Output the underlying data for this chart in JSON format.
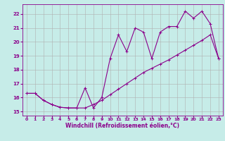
{
  "xlabel": "Windchill (Refroidissement éolien,°C)",
  "bg_color": "#c6ece8",
  "line_color": "#8b008b",
  "grid_color": "#b0b0b0",
  "xlim": [
    -0.5,
    23.5
  ],
  "ylim": [
    14.7,
    22.7
  ],
  "yticks": [
    15,
    16,
    17,
    18,
    19,
    20,
    21,
    22
  ],
  "xticks": [
    0,
    1,
    2,
    3,
    4,
    5,
    6,
    7,
    8,
    9,
    10,
    11,
    12,
    13,
    14,
    15,
    16,
    17,
    18,
    19,
    20,
    21,
    22,
    23
  ],
  "line1_x": [
    0,
    1,
    2,
    3,
    4,
    5,
    6,
    7,
    8,
    9,
    10,
    11,
    12,
    13,
    14,
    15,
    16,
    17,
    18,
    19,
    20,
    21,
    22,
    23
  ],
  "line1_y": [
    16.3,
    16.3,
    15.8,
    15.5,
    15.3,
    15.25,
    15.25,
    15.25,
    15.5,
    15.8,
    16.2,
    16.6,
    17.0,
    17.4,
    17.8,
    18.1,
    18.4,
    18.7,
    19.05,
    19.4,
    19.75,
    20.1,
    20.5,
    18.8
  ],
  "line2_x": [
    0,
    1,
    2,
    3,
    4,
    5,
    6,
    7,
    8,
    9,
    10,
    11,
    12,
    13,
    14,
    15,
    16,
    17,
    18,
    19,
    20,
    21,
    22,
    23
  ],
  "line2_y": [
    16.3,
    16.3,
    15.8,
    15.5,
    15.3,
    15.25,
    15.25,
    16.7,
    15.25,
    16.0,
    18.8,
    20.5,
    19.3,
    21.0,
    20.7,
    18.8,
    20.7,
    21.1,
    21.1,
    22.2,
    21.7,
    22.2,
    21.3,
    18.8
  ]
}
